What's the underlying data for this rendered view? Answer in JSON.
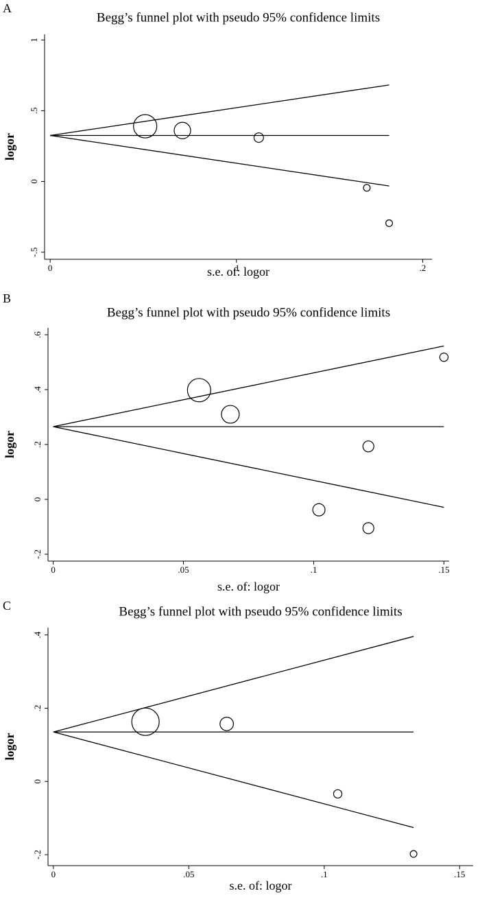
{
  "chart_data": [
    {
      "type": "scatter",
      "panel": "A",
      "title": "Begg’s funnel plot with pseudo 95% confidence limits",
      "x_label": "s.e. of: logor",
      "y_label": "logor",
      "x": [
        0.051,
        0.071,
        0.112,
        0.17,
        0.182
      ],
      "values": [
        0.39,
        0.36,
        0.31,
        -0.045,
        -0.295
      ],
      "sizes": [
        18,
        9,
        3,
        1.5,
        1.5
      ],
      "lines": [
        {
          "x": [
            0,
            0.182
          ],
          "values": [
            0.325,
            0.682
          ]
        },
        {
          "x": [
            0,
            0.182
          ],
          "values": [
            0.325,
            0.325
          ]
        },
        {
          "x": [
            0,
            0.182
          ],
          "values": [
            0.325,
            -0.032
          ]
        }
      ],
      "xlim": [
        -0.003,
        0.205
      ],
      "ylim": [
        -0.55,
        1.04
      ],
      "xticks": [
        0,
        {
          "value": 0.1,
          "label": ".1"
        },
        {
          "value": 0.2,
          "label": ".2"
        }
      ],
      "yticks": [
        {
          "value": -0.5,
          "label": "-.5"
        },
        0,
        {
          "value": 0.5,
          "label": ".5"
        },
        1
      ]
    },
    {
      "type": "scatter",
      "panel": "B",
      "title": "Begg’s funnel plot with pseudo 95% confidence limits",
      "x_label": "s.e. of: logor",
      "y_label": "logor",
      "x": [
        0.056,
        0.068,
        0.121,
        0.15,
        0.102,
        0.121
      ],
      "values": [
        0.398,
        0.31,
        0.193,
        0.518,
        -0.038,
        -0.105
      ],
      "sizes": [
        18,
        10.5,
        4,
        2.3,
        5,
        4
      ],
      "lines": [
        {
          "x": [
            0,
            0.15
          ],
          "values": [
            0.265,
            0.559
          ]
        },
        {
          "x": [
            0,
            0.15
          ],
          "values": [
            0.265,
            0.265
          ]
        },
        {
          "x": [
            0,
            0.15
          ],
          "values": [
            0.265,
            -0.029
          ]
        }
      ],
      "xlim": [
        -0.002,
        0.152
      ],
      "ylim": [
        -0.225,
        0.625
      ],
      "xticks": [
        0,
        {
          "value": 0.05,
          "label": ".05"
        },
        {
          "value": 0.1,
          "label": ".1"
        },
        {
          "value": 0.15,
          "label": ".15"
        }
      ],
      "yticks": [
        {
          "value": -0.2,
          "label": "-.2"
        },
        0,
        {
          "value": 0.2,
          "label": ".2"
        },
        {
          "value": 0.4,
          "label": ".4"
        },
        {
          "value": 0.6,
          "label": ".6"
        }
      ]
    },
    {
      "type": "scatter",
      "panel": "C",
      "title": "Begg’s funnel plot with pseudo 95% confidence limits",
      "x_label": "s.e. of: logor",
      "y_label": "logor",
      "x": [
        0.034,
        0.064,
        0.105,
        0.133
      ],
      "values": [
        0.163,
        0.157,
        -0.034,
        -0.198
      ],
      "sizes": [
        25,
        6,
        2.3,
        1.5
      ],
      "lines": [
        {
          "x": [
            0,
            0.133
          ],
          "values": [
            0.135,
            0.396
          ]
        },
        {
          "x": [
            0,
            0.133
          ],
          "values": [
            0.135,
            0.135
          ]
        },
        {
          "x": [
            0,
            0.133
          ],
          "values": [
            0.135,
            -0.126
          ]
        }
      ],
      "xlim": [
        -0.002,
        0.155
      ],
      "ylim": [
        -0.23,
        0.42
      ],
      "xticks": [
        0,
        {
          "value": 0.05,
          "label": ".05"
        },
        {
          "value": 0.1,
          "label": ".1"
        },
        {
          "value": 0.15,
          "label": ".15"
        }
      ],
      "yticks": [
        {
          "value": -0.2,
          "label": "-.2"
        },
        0,
        {
          "value": 0.2,
          "label": ".2"
        },
        {
          "value": 0.4,
          "label": ".4"
        }
      ]
    }
  ]
}
